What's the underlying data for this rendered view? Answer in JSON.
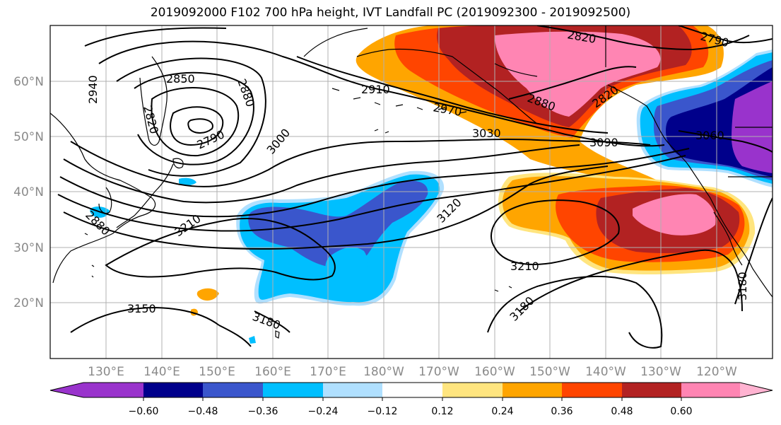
{
  "title": "2019092000 F102 700 hPa height, IVT Landfall PC (2019092300 - 2019092500)",
  "map": {
    "lat_labels": [
      "60°N",
      "50°N",
      "40°N",
      "30°N",
      "20°N"
    ],
    "lon_labels": [
      "130°E",
      "140°E",
      "150°E",
      "160°E",
      "170°E",
      "180°W",
      "170°W",
      "160°W",
      "150°W",
      "140°W",
      "130°W",
      "120°W"
    ],
    "contour_labels": [
      "2850",
      "2880",
      "2820",
      "2790",
      "2940",
      "2910",
      "2970",
      "3030",
      "3000",
      "2820",
      "2880",
      "2820",
      "2790",
      "3090",
      "3060",
      "3120",
      "3210",
      "3210",
      "3180",
      "3150",
      "3180",
      "3180",
      "2880"
    ],
    "colors": {
      "land_outline": "#000000",
      "grid": "#b0b0b0",
      "contour": "#000000"
    }
  },
  "colorbar": {
    "ticks": [
      "−0.60",
      "−0.48",
      "−0.36",
      "−0.24",
      "−0.12",
      "0.12",
      "0.24",
      "0.36",
      "0.48",
      "0.60"
    ],
    "colors": [
      "#9933cc",
      "#00008b",
      "#3a56cc",
      "#00bfff",
      "#b0e0ff",
      "#ffffff",
      "#ffe57f",
      "#ffa500",
      "#ff4500",
      "#b22222",
      "#ff85b3",
      "#ffb3d1"
    ]
  }
}
